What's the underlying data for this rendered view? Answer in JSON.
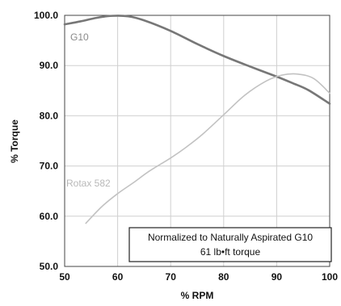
{
  "chart_data": {
    "type": "line",
    "xlabel": "% RPM",
    "ylabel": "% Torque",
    "xlim": [
      50,
      100
    ],
    "ylim": [
      50,
      100
    ],
    "x_ticks": [
      "50",
      "60",
      "70",
      "80",
      "90",
      "100"
    ],
    "y_ticks": [
      "50.0",
      "60.0",
      "70.0",
      "80.0",
      "90.0",
      "100.0"
    ],
    "grid": true,
    "series": [
      {
        "name": "G10",
        "color": "#777777",
        "points": [
          [
            50,
            98.2
          ],
          [
            53,
            98.8
          ],
          [
            56,
            99.5
          ],
          [
            59,
            99.9
          ],
          [
            62,
            99.8
          ],
          [
            65,
            99.0
          ],
          [
            70,
            96.9
          ],
          [
            75,
            94.3
          ],
          [
            80,
            91.9
          ],
          [
            85,
            89.8
          ],
          [
            90,
            87.8
          ],
          [
            93,
            86.5
          ],
          [
            96,
            85.1
          ],
          [
            100,
            82.4
          ]
        ]
      },
      {
        "name": "Rotax 582",
        "color": "#c2c2c2",
        "points": [
          [
            54,
            58.6
          ],
          [
            57,
            61.9
          ],
          [
            60,
            64.5
          ],
          [
            63,
            66.7
          ],
          [
            66,
            69.0
          ],
          [
            70,
            71.6
          ],
          [
            73,
            73.8
          ],
          [
            76,
            76.3
          ],
          [
            80,
            80.2
          ],
          [
            84,
            84.1
          ],
          [
            88,
            86.9
          ],
          [
            91,
            88.1
          ],
          [
            94,
            88.3
          ],
          [
            97,
            87.4
          ],
          [
            100,
            84.5
          ]
        ]
      }
    ],
    "annotation": {
      "line1": "Normalized to Naturally Aspirated G10",
      "line2": "61 lb•ft torque"
    }
  }
}
